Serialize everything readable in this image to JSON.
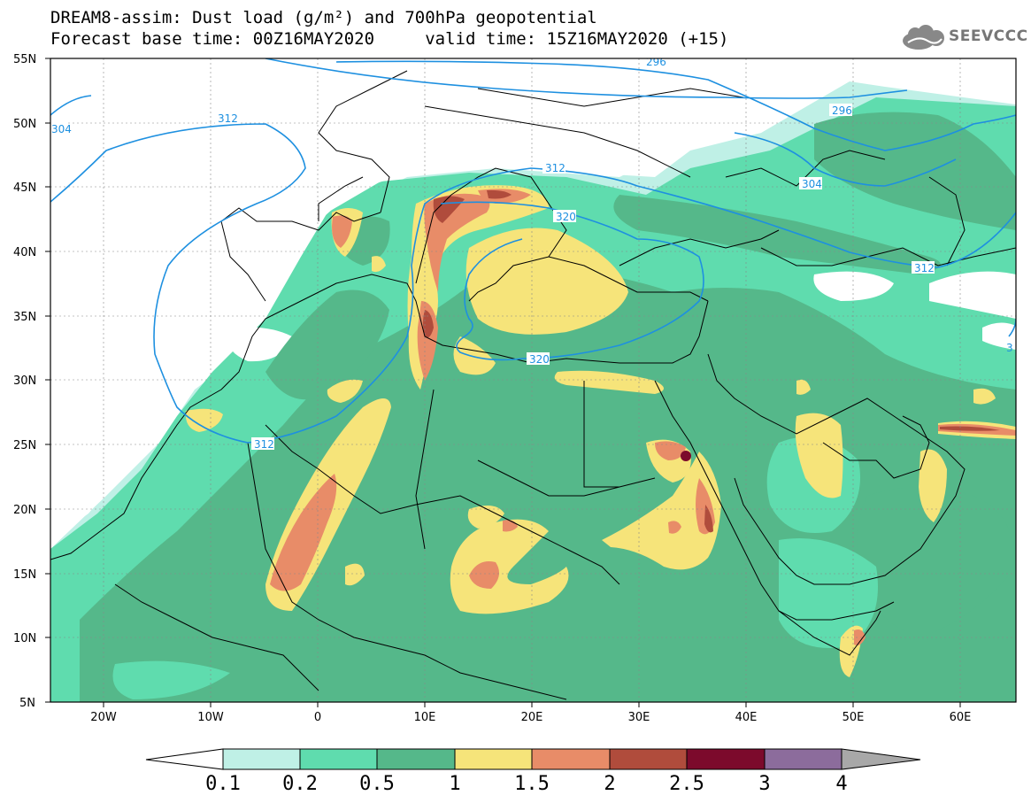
{
  "title": {
    "line1": "DREAM8-assim: Dust load (g/m²) and 700hPa geopotential",
    "line2": "Forecast base time: 00Z16MAY2020     valid time: 15Z16MAY2020 (+15)"
  },
  "logo": {
    "text": "SEEVCCC",
    "icon": "cloud-icon"
  },
  "map": {
    "lon_range": [
      -25,
      65
    ],
    "lat_range": [
      5,
      55
    ],
    "lat_ticks": [
      "55N",
      "50N",
      "45N",
      "40N",
      "35N",
      "30N",
      "25N",
      "20N",
      "15N",
      "10N",
      "5N"
    ],
    "lon_ticks": [
      "20W",
      "10W",
      "0",
      "10E",
      "20E",
      "30E",
      "40E",
      "50E",
      "60E"
    ],
    "contour_labels": [
      "296",
      "296",
      "304",
      "304",
      "312",
      "312",
      "312",
      "312",
      "320",
      "320",
      "3"
    ]
  },
  "colorbar": {
    "labels": [
      "0.1",
      "0.2",
      "0.5",
      "1",
      "1.5",
      "2",
      "2.5",
      "3",
      "4"
    ],
    "colors": [
      "#ffffff",
      "#bff0e6",
      "#5fdcae",
      "#55b88a",
      "#f6e47a",
      "#e88c68",
      "#b04c3c",
      "#7c0a2c",
      "#8c6c9c",
      "#a8a8a8"
    ]
  }
}
